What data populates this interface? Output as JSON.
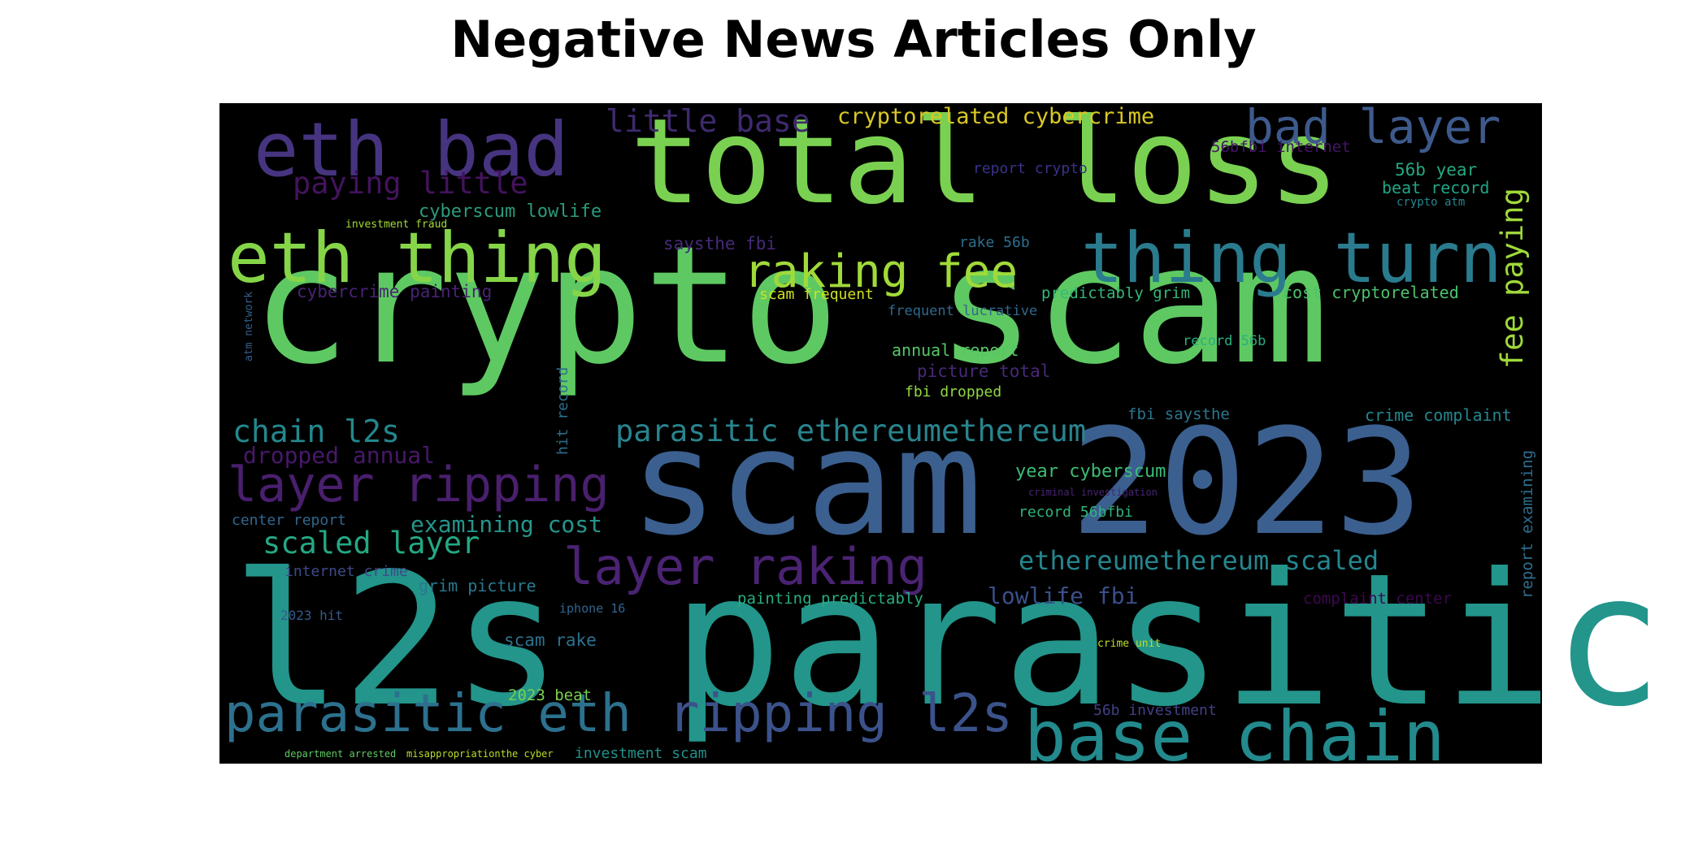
{
  "figure": {
    "title": "Negative News Articles Only"
  },
  "wordcloud": {
    "words": [
      {
        "text": "crypto scam",
        "color": "#5ec962"
      },
      {
        "text": "scam 2023",
        "color": "#3b5f8f"
      },
      {
        "text": "l2s parasitic",
        "color": "#23958b"
      },
      {
        "text": "total loss",
        "color": "#7ad151"
      },
      {
        "text": "eth bad",
        "color": "#463480"
      },
      {
        "text": "eth thing",
        "color": "#86d549"
      },
      {
        "text": "thing turn",
        "color": "#2a7b8e"
      },
      {
        "text": "bad layer",
        "color": "#3e5a8c"
      },
      {
        "text": "raking fee",
        "color": "#a0da39"
      },
      {
        "text": "layer ripping",
        "color": "#4a1f6e"
      },
      {
        "text": "layer raking",
        "color": "#4b2373"
      },
      {
        "text": "parasitic eth",
        "color": "#2c718e"
      },
      {
        "text": "ripping l2s",
        "color": "#3b528b"
      },
      {
        "text": "base chain",
        "color": "#238a8d"
      },
      {
        "text": "little base",
        "color": "#3f2a6e"
      },
      {
        "text": "cryptorelated cybercrime",
        "color": "#d9c826"
      },
      {
        "text": "paying little",
        "color": "#44135e"
      },
      {
        "text": "cyberscum lowlife",
        "color": "#2c9a7c"
      },
      {
        "text": "fee paying",
        "color": "#9fd83a"
      },
      {
        "text": "parasitic ethereumethereum",
        "color": "#28848e"
      },
      {
        "text": "chain l2s",
        "color": "#23888e"
      },
      {
        "text": "dropped annual",
        "color": "#48186a"
      },
      {
        "text": "scaled layer",
        "color": "#24a884"
      },
      {
        "text": "examining cost",
        "color": "#25958b"
      },
      {
        "text": "ethereumethereum scaled",
        "color": "#24868e"
      },
      {
        "text": "lowlife fbi",
        "color": "#3a4f8a"
      },
      {
        "text": "report crypto",
        "color": "#39328a"
      },
      {
        "text": "56bfbi internet",
        "color": "#45146a"
      },
      {
        "text": "56b year",
        "color": "#25a883"
      },
      {
        "text": "beat record",
        "color": "#20a486"
      },
      {
        "text": "crypto atm",
        "color": "#26868e"
      },
      {
        "text": "investment fraud",
        "color": "#a2da37"
      },
      {
        "text": "saysthe fbi",
        "color": "#472a7a"
      },
      {
        "text": "rake 56b",
        "color": "#2c6f8e"
      },
      {
        "text": "cybercrime painting",
        "color": "#482374"
      },
      {
        "text": "scam frequent",
        "color": "#cde11d"
      },
      {
        "text": "predictably grim",
        "color": "#35b779"
      },
      {
        "text": "cost cryptorelated",
        "color": "#4cc26c"
      },
      {
        "text": "frequent lucrative",
        "color": "#30698e"
      },
      {
        "text": "atm network",
        "color": "#35608d"
      },
      {
        "text": "annual report",
        "color": "#56c667"
      },
      {
        "text": "record 56b",
        "color": "#29af7f"
      },
      {
        "text": "picture total",
        "color": "#482979"
      },
      {
        "text": "fbi dropped",
        "color": "#90d743"
      },
      {
        "text": "hit record",
        "color": "#2e6e8e"
      },
      {
        "text": "fbi saysthe",
        "color": "#2a768e"
      },
      {
        "text": "crime complaint",
        "color": "#24868e"
      },
      {
        "text": "report examining",
        "color": "#2e6e8e"
      },
      {
        "text": "year cyberscum",
        "color": "#3dbc74"
      },
      {
        "text": "criminal investigation",
        "color": "#482575"
      },
      {
        "text": "center report",
        "color": "#31678e"
      },
      {
        "text": "record 56bfbi",
        "color": "#2fb47c"
      },
      {
        "text": "internet crime",
        "color": "#3e4a89"
      },
      {
        "text": "grim picture",
        "color": "#29798e"
      },
      {
        "text": "iphone 16",
        "color": "#32648e"
      },
      {
        "text": "painting predictably",
        "color": "#27ad81"
      },
      {
        "text": "complaint center",
        "color": "#3e0751"
      },
      {
        "text": "2023 hit",
        "color": "#375a8c"
      },
      {
        "text": "scam rake",
        "color": "#2c728e"
      },
      {
        "text": "crime unit",
        "color": "#bddf26"
      },
      {
        "text": "2023 beat",
        "color": "#7ad151"
      },
      {
        "text": "56b investment",
        "color": "#424086"
      },
      {
        "text": "department arrested",
        "color": "#5ec962"
      },
      {
        "text": "misappropriationthe cyber",
        "color": "#b8de29"
      },
      {
        "text": "investment scam",
        "color": "#21918c"
      }
    ]
  }
}
